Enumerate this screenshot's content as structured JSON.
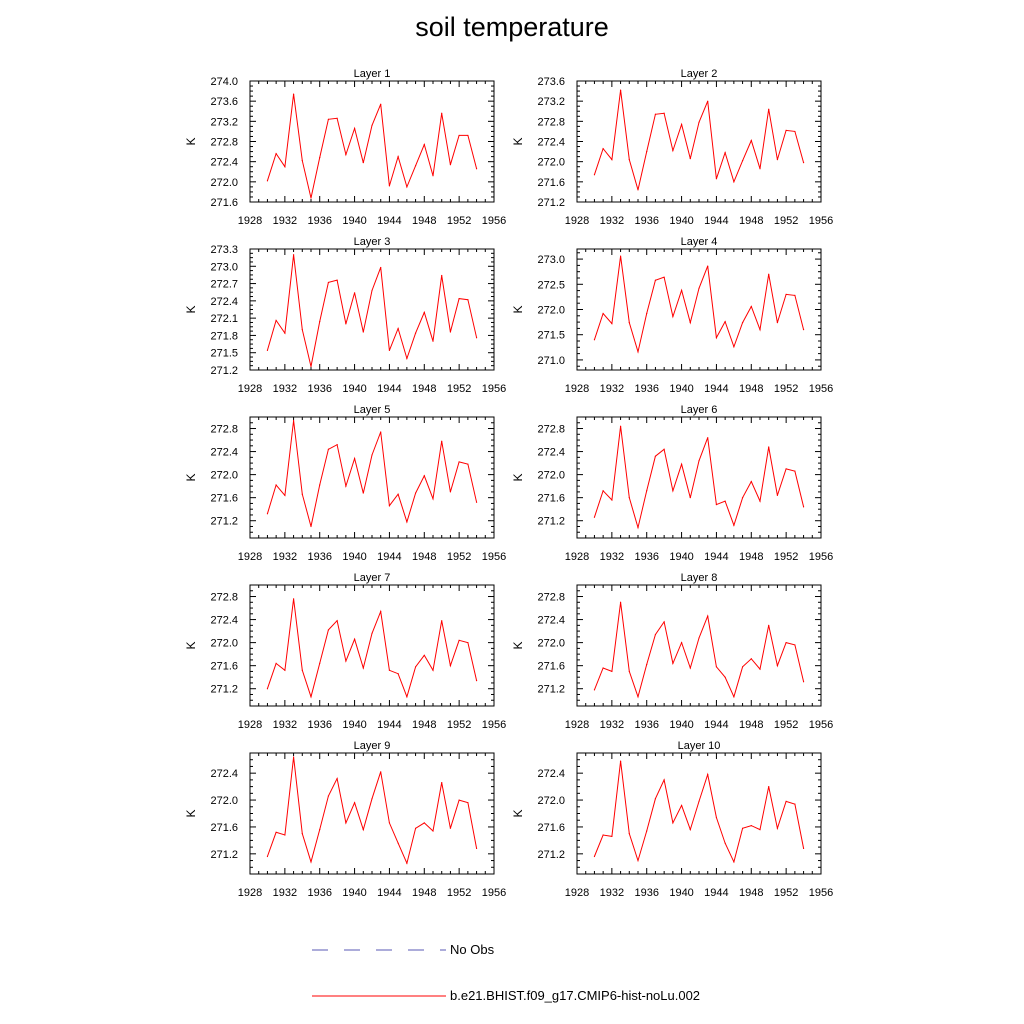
{
  "title": "soil temperature",
  "legend": {
    "items": [
      {
        "label": "No Obs",
        "color": "#5a5ab4",
        "style": "dashed"
      },
      {
        "label": "b.e21.BHIST.f09_g17.CMIP6-hist-noLu.002",
        "color": "#ff0000",
        "style": "solid"
      }
    ]
  },
  "chart_data": [
    {
      "type": "line",
      "title": "Layer 1",
      "ylabel": "K",
      "xlim": [
        1928,
        1956
      ],
      "ylim": [
        271.6,
        274.0
      ],
      "xticks": [
        "1928",
        "1932",
        "1936",
        "1940",
        "1944",
        "1948",
        "1952",
        "1956"
      ],
      "yticks": [
        "271.6",
        "272.0",
        "272.4",
        "272.8",
        "273.2",
        "273.6",
        "274.0"
      ],
      "x": [
        1930,
        1931,
        1932,
        1933,
        1934,
        1935,
        1936,
        1937,
        1938,
        1939,
        1940,
        1941,
        1942,
        1943,
        1944,
        1945,
        1946,
        1947,
        1948,
        1949,
        1950,
        1951,
        1952,
        1953,
        1954
      ],
      "series": [
        {
          "name": "b.e21.BHIST.f09_g17.CMIP6-hist-noLu.002",
          "color": "#ff0000",
          "values": [
            272.02,
            272.56,
            272.3,
            273.74,
            272.42,
            271.68,
            272.48,
            273.24,
            273.26,
            272.54,
            273.06,
            272.38,
            273.12,
            273.54,
            271.92,
            272.5,
            271.9,
            272.32,
            272.74,
            272.12,
            273.36,
            272.34,
            272.92,
            272.92,
            272.26
          ]
        }
      ]
    },
    {
      "type": "line",
      "title": "Layer 2",
      "ylabel": "K",
      "xlim": [
        1928,
        1956
      ],
      "ylim": [
        271.2,
        273.6
      ],
      "xticks": [
        "1928",
        "1932",
        "1936",
        "1940",
        "1944",
        "1948",
        "1952",
        "1956"
      ],
      "yticks": [
        "271.2",
        "271.6",
        "272.0",
        "272.4",
        "272.8",
        "273.2",
        "273.6"
      ],
      "x": [
        1930,
        1931,
        1932,
        1933,
        1934,
        1935,
        1936,
        1937,
        1938,
        1939,
        1940,
        1941,
        1942,
        1943,
        1944,
        1945,
        1946,
        1947,
        1948,
        1949,
        1950,
        1951,
        1952,
        1953,
        1954
      ],
      "series": [
        {
          "name": "b.e21.BHIST.f09_g17.CMIP6-hist-noLu.002",
          "color": "#ff0000",
          "values": [
            271.74,
            272.26,
            272.04,
            273.42,
            272.04,
            271.44,
            272.2,
            272.94,
            272.96,
            272.22,
            272.74,
            272.06,
            272.78,
            273.2,
            271.66,
            272.18,
            271.6,
            272.02,
            272.42,
            271.86,
            273.04,
            272.04,
            272.62,
            272.6,
            271.98
          ]
        }
      ]
    },
    {
      "type": "line",
      "title": "Layer 3",
      "ylabel": "K",
      "xlim": [
        1928,
        1956
      ],
      "ylim": [
        271.2,
        273.3
      ],
      "xticks": [
        "1928",
        "1932",
        "1936",
        "1940",
        "1944",
        "1948",
        "1952",
        "1956"
      ],
      "yticks": [
        "271.2",
        "271.5",
        "271.8",
        "272.1",
        "272.4",
        "272.7",
        "273.0",
        "273.3"
      ],
      "x": [
        1930,
        1931,
        1932,
        1933,
        1934,
        1935,
        1936,
        1937,
        1938,
        1939,
        1940,
        1941,
        1942,
        1943,
        1944,
        1945,
        1946,
        1947,
        1948,
        1949,
        1950,
        1951,
        1952,
        1953,
        1954
      ],
      "series": [
        {
          "name": "b.e21.BHIST.f09_g17.CMIP6-hist-noLu.002",
          "color": "#ff0000",
          "values": [
            271.54,
            272.06,
            271.84,
            273.2,
            271.9,
            271.26,
            272.04,
            272.72,
            272.76,
            272.0,
            272.54,
            271.86,
            272.58,
            272.98,
            271.54,
            271.92,
            271.4,
            271.84,
            272.2,
            271.7,
            272.84,
            271.86,
            272.44,
            272.42,
            271.76
          ]
        }
      ]
    },
    {
      "type": "line",
      "title": "Layer 4",
      "ylabel": "K",
      "xlim": [
        1928,
        1956
      ],
      "ylim": [
        270.8,
        273.2
      ],
      "xticks": [
        "1928",
        "1932",
        "1936",
        "1940",
        "1944",
        "1948",
        "1952",
        "1956"
      ],
      "yticks": [
        "271.0",
        "271.5",
        "272.0",
        "272.5",
        "273.0"
      ],
      "x": [
        1930,
        1931,
        1932,
        1933,
        1934,
        1935,
        1936,
        1937,
        1938,
        1939,
        1940,
        1941,
        1942,
        1943,
        1944,
        1945,
        1946,
        1947,
        1948,
        1949,
        1950,
        1951,
        1952,
        1953,
        1954
      ],
      "series": [
        {
          "name": "b.e21.BHIST.f09_g17.CMIP6-hist-noLu.002",
          "color": "#ff0000",
          "values": [
            271.4,
            271.92,
            271.72,
            273.06,
            271.74,
            271.16,
            271.92,
            272.58,
            272.64,
            271.86,
            272.38,
            271.74,
            272.42,
            272.86,
            271.44,
            271.76,
            271.26,
            271.74,
            272.06,
            271.6,
            272.7,
            271.74,
            272.3,
            272.28,
            271.6
          ]
        }
      ]
    },
    {
      "type": "line",
      "title": "Layer 5",
      "ylabel": "K",
      "xlim": [
        1928,
        1956
      ],
      "ylim": [
        270.9,
        273.0
      ],
      "xticks": [
        "1928",
        "1932",
        "1936",
        "1940",
        "1944",
        "1948",
        "1952",
        "1956"
      ],
      "yticks": [
        "271.2",
        "271.6",
        "272.0",
        "272.4",
        "272.8"
      ],
      "x": [
        1930,
        1931,
        1932,
        1933,
        1934,
        1935,
        1936,
        1937,
        1938,
        1939,
        1940,
        1941,
        1942,
        1943,
        1944,
        1945,
        1946,
        1947,
        1948,
        1949,
        1950,
        1951,
        1952,
        1953,
        1954
      ],
      "series": [
        {
          "name": "b.e21.BHIST.f09_g17.CMIP6-hist-noLu.002",
          "color": "#ff0000",
          "values": [
            271.32,
            271.82,
            271.64,
            272.94,
            271.66,
            271.1,
            271.82,
            272.44,
            272.52,
            271.8,
            272.28,
            271.68,
            272.34,
            272.74,
            271.46,
            271.66,
            271.18,
            271.68,
            271.98,
            271.58,
            272.58,
            271.7,
            272.22,
            272.18,
            271.52
          ]
        }
      ]
    },
    {
      "type": "line",
      "title": "Layer 6",
      "ylabel": "K",
      "xlim": [
        1928,
        1956
      ],
      "ylim": [
        270.9,
        273.0
      ],
      "xticks": [
        "1928",
        "1932",
        "1936",
        "1940",
        "1944",
        "1948",
        "1952",
        "1956"
      ],
      "yticks": [
        "271.2",
        "271.6",
        "272.0",
        "272.4",
        "272.8"
      ],
      "x": [
        1930,
        1931,
        1932,
        1933,
        1934,
        1935,
        1936,
        1937,
        1938,
        1939,
        1940,
        1941,
        1942,
        1943,
        1944,
        1945,
        1946,
        1947,
        1948,
        1949,
        1950,
        1951,
        1952,
        1953,
        1954
      ],
      "series": [
        {
          "name": "b.e21.BHIST.f09_g17.CMIP6-hist-noLu.002",
          "color": "#ff0000",
          "values": [
            271.26,
            271.72,
            271.56,
            272.84,
            271.6,
            271.08,
            271.72,
            272.32,
            272.44,
            271.72,
            272.18,
            271.6,
            272.24,
            272.64,
            271.48,
            271.54,
            271.12,
            271.6,
            271.88,
            271.54,
            272.48,
            271.64,
            272.1,
            272.06,
            271.44
          ]
        }
      ]
    },
    {
      "type": "line",
      "title": "Layer 7",
      "ylabel": "K",
      "xlim": [
        1928,
        1956
      ],
      "ylim": [
        270.9,
        273.0
      ],
      "xticks": [
        "1928",
        "1932",
        "1936",
        "1940",
        "1944",
        "1948",
        "1952",
        "1956"
      ],
      "yticks": [
        "271.2",
        "271.6",
        "272.0",
        "272.4",
        "272.8"
      ],
      "x": [
        1930,
        1931,
        1932,
        1933,
        1934,
        1935,
        1936,
        1937,
        1938,
        1939,
        1940,
        1941,
        1942,
        1943,
        1944,
        1945,
        1946,
        1947,
        1948,
        1949,
        1950,
        1951,
        1952,
        1953,
        1954
      ],
      "series": [
        {
          "name": "b.e21.BHIST.f09_g17.CMIP6-hist-noLu.002",
          "color": "#ff0000",
          "values": [
            271.2,
            271.64,
            271.52,
            272.76,
            271.52,
            271.06,
            271.64,
            272.22,
            272.38,
            271.68,
            272.06,
            271.56,
            272.16,
            272.54,
            271.52,
            271.46,
            271.06,
            271.58,
            271.78,
            271.52,
            272.38,
            271.6,
            272.04,
            272.0,
            271.34
          ]
        }
      ]
    },
    {
      "type": "line",
      "title": "Layer 8",
      "ylabel": "K",
      "xlim": [
        1928,
        1956
      ],
      "ylim": [
        270.9,
        273.0
      ],
      "xticks": [
        "1928",
        "1932",
        "1936",
        "1940",
        "1944",
        "1948",
        "1952",
        "1956"
      ],
      "yticks": [
        "271.2",
        "271.6",
        "272.0",
        "272.4",
        "272.8"
      ],
      "x": [
        1930,
        1931,
        1932,
        1933,
        1934,
        1935,
        1936,
        1937,
        1938,
        1939,
        1940,
        1941,
        1942,
        1943,
        1944,
        1945,
        1946,
        1947,
        1948,
        1949,
        1950,
        1951,
        1952,
        1953,
        1954
      ],
      "series": [
        {
          "name": "b.e21.BHIST.f09_g17.CMIP6-hist-noLu.002",
          "color": "#ff0000",
          "values": [
            271.18,
            271.56,
            271.5,
            272.7,
            271.5,
            271.06,
            271.62,
            272.14,
            272.36,
            271.64,
            272.0,
            271.56,
            272.08,
            272.46,
            271.58,
            271.4,
            271.06,
            271.58,
            271.72,
            271.54,
            272.3,
            271.6,
            272.0,
            271.96,
            271.32
          ]
        }
      ]
    },
    {
      "type": "line",
      "title": "Layer 9",
      "ylabel": "K",
      "xlim": [
        1928,
        1956
      ],
      "ylim": [
        270.9,
        272.7
      ],
      "xticks": [
        "1928",
        "1932",
        "1936",
        "1940",
        "1944",
        "1948",
        "1952",
        "1956"
      ],
      "yticks": [
        "271.2",
        "271.6",
        "272.0",
        "272.4"
      ],
      "x": [
        1930,
        1931,
        1932,
        1933,
        1934,
        1935,
        1936,
        1937,
        1938,
        1939,
        1940,
        1941,
        1942,
        1943,
        1944,
        1945,
        1946,
        1947,
        1948,
        1949,
        1950,
        1951,
        1952,
        1953,
        1954
      ],
      "series": [
        {
          "name": "b.e21.BHIST.f09_g17.CMIP6-hist-noLu.002",
          "color": "#ff0000",
          "values": [
            271.16,
            271.52,
            271.48,
            272.64,
            271.5,
            271.08,
            271.56,
            272.06,
            272.32,
            271.66,
            271.96,
            271.56,
            272.02,
            272.42,
            271.66,
            271.36,
            271.06,
            271.58,
            271.66,
            271.54,
            272.26,
            271.58,
            272.0,
            271.96,
            271.28
          ]
        }
      ]
    },
    {
      "type": "line",
      "title": "Layer 10",
      "ylabel": "K",
      "xlim": [
        1928,
        1956
      ],
      "ylim": [
        270.9,
        272.7
      ],
      "xticks": [
        "1928",
        "1932",
        "1936",
        "1940",
        "1944",
        "1948",
        "1952",
        "1956"
      ],
      "yticks": [
        "271.2",
        "271.6",
        "272.0",
        "272.4"
      ],
      "x": [
        1930,
        1931,
        1932,
        1933,
        1934,
        1935,
        1936,
        1937,
        1938,
        1939,
        1940,
        1941,
        1942,
        1943,
        1944,
        1945,
        1946,
        1947,
        1948,
        1949,
        1950,
        1951,
        1952,
        1953,
        1954
      ],
      "series": [
        {
          "name": "b.e21.BHIST.f09_g17.CMIP6-hist-noLu.002",
          "color": "#ff0000",
          "values": [
            271.16,
            271.48,
            271.46,
            272.58,
            271.5,
            271.1,
            271.54,
            272.02,
            272.3,
            271.66,
            271.92,
            271.56,
            271.98,
            272.38,
            271.74,
            271.36,
            271.08,
            271.58,
            271.62,
            271.56,
            272.2,
            271.58,
            271.98,
            271.94,
            271.28
          ]
        }
      ]
    }
  ]
}
